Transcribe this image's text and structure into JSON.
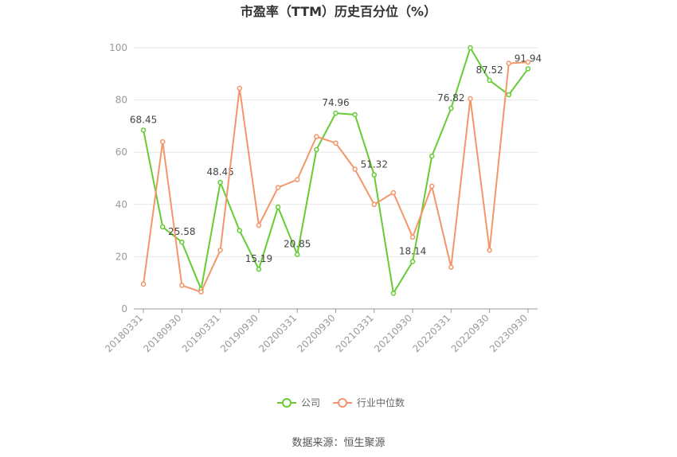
{
  "chart_data": {
    "type": "line",
    "title": "市盈率（TTM）历史百分位（%）",
    "categories": [
      "20180331",
      null,
      "20180930",
      null,
      "20190331",
      null,
      "20190930",
      null,
      "20200331",
      null,
      "20200930",
      null,
      "20210331",
      null,
      "20210930",
      null,
      "20220331",
      null,
      "20220930",
      null,
      "20230930"
    ],
    "series": [
      {
        "name": "公司",
        "color": "#66cc33",
        "values": [
          68.45,
          31.4,
          25.58,
          7.5,
          48.45,
          30,
          15.19,
          39,
          20.85,
          61,
          74.96,
          74.4,
          51.32,
          6,
          18.14,
          58.5,
          76.82,
          100,
          87.52,
          82,
          91.94
        ]
      },
      {
        "name": "行业中位数",
        "color": "#f4956a",
        "values": [
          9.5,
          64,
          9,
          6.5,
          22.5,
          84.5,
          32,
          46.5,
          49.5,
          66,
          63.5,
          53.5,
          40,
          44.5,
          27.5,
          47,
          16,
          80.5,
          22.5,
          94,
          94.5
        ]
      }
    ],
    "ylim": [
      0,
      100
    ],
    "yticks": [
      0,
      20,
      40,
      60,
      80,
      100
    ],
    "grid": true,
    "legend": "bottom",
    "source": "数据来源：恒生聚源"
  }
}
